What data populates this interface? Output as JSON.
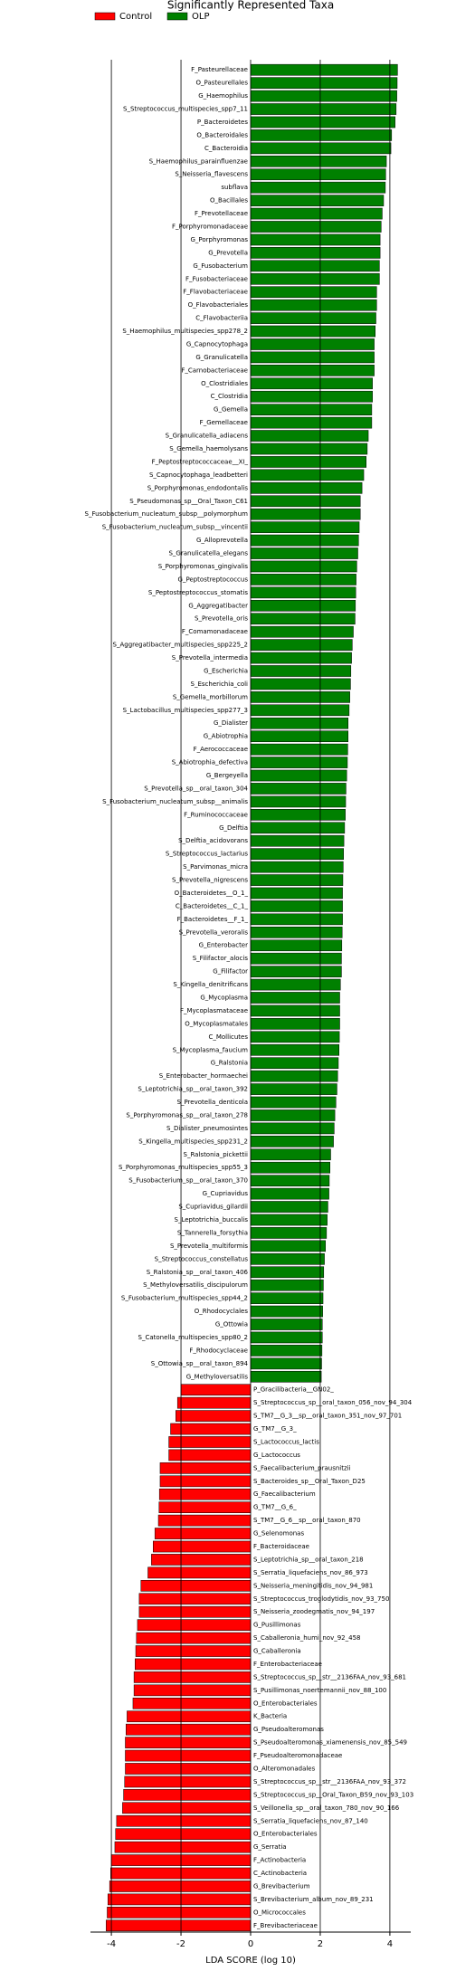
{
  "chart_data": {
    "type": "bar",
    "orientation": "horizontal",
    "title": "Significantly Represented Taxa",
    "xlabel": "LDA SCORE (log 10)",
    "xlim": [
      -4.6,
      4.6
    ],
    "xticks": [
      -4,
      -2,
      0,
      2,
      4
    ],
    "grid": true,
    "legend": "top left",
    "series": [
      {
        "name": "OLP",
        "color": "#008000",
        "categories": [
          "F_Pasteurellaceae",
          "O_Pasteurellales",
          "G_Haemophilus",
          "S_Streptococcus_multispecies_spp7_11",
          "P_Bacteroidetes",
          "O_Bacteroidales",
          "C_Bacteroidia",
          "S_Haemophilus_parainfluenzae",
          "S_Neisseria_flavescens",
          "subflava",
          "O_Bacillales",
          "F_Prevotellaceae",
          "F_Porphyromonadaceae",
          "G_Porphyromonas",
          "G_Prevotella",
          "G_Fusobacterium",
          "F_Fusobacteriaceae",
          "F_Flavobacteriaceae",
          "O_Flavobacteriales",
          "C_Flavobacteriia",
          "S_Haemophilus_multispecies_spp278_2",
          "G_Capnocytophaga",
          "G_Granulicatella",
          "F_Carnobacteriaceae",
          "O_Clostridiales",
          "C_Clostridia",
          "G_Gemella",
          "F_Gemellaceae",
          "S_Granulicatella_adiacens",
          "S_Gemella_haemolysans",
          "F_Peptostreptococcaceae__XI_",
          "S_Capnocytophaga_leadbetteri",
          "S_Porphyromonas_endodontalis",
          "S_Pseudomonas_sp__Oral_Taxon_C61",
          "S_Fusobacterium_nucleatum_subsp__polymorphum",
          "S_Fusobacterium_nucleatum_subsp__vincentii",
          "G_Alloprevotella",
          "S_Granulicatella_elegans",
          "S_Porphyromonas_gingivalis",
          "G_Peptostreptococcus",
          "S_Peptostreptococcus_stomatis",
          "G_Aggregatibacter",
          "S_Prevotella_oris",
          "F_Comamonadaceae",
          "S_Aggregatibacter_multispecies_spp225_2",
          "S_Prevotella_intermedia",
          "G_Escherichia",
          "S_Escherichia_coli",
          "S_Gemella_morbillorum",
          "S_Lactobacillus_multispecies_spp277_3",
          "G_Dialister",
          "G_Abiotrophia",
          "F_Aerococcaceae",
          "S_Abiotrophia_defectiva",
          "G_Bergeyella",
          "S_Prevotella_sp__oral_taxon_304",
          "S_Fusobacterium_nucleatum_subsp__animalis",
          "F_Ruminococcaceae",
          "G_Delftia",
          "S_Delftia_acidovorans",
          "S_Streptococcus_lactarius",
          "S_Parvimonas_micra",
          "S_Prevotella_nigrescens",
          "O_Bacteroidetes__O_1_",
          "C_Bacteroidetes__C_1_",
          "F_Bacteroidetes__F_1_",
          "S_Prevotella_veroralis",
          "G_Enterobacter",
          "S_Filifactor_alocis",
          "G_Filifactor",
          "S_Kingella_denitrificans",
          "G_Mycoplasma",
          "F_Mycoplasmataceae",
          "O_Mycoplasmatales",
          "C_Mollicutes",
          "S_Mycoplasma_faucium",
          "G_Ralstonia",
          "S_Enterobacter_hormaechei",
          "S_Leptotrichia_sp__oral_taxon_392",
          "S_Prevotella_denticola",
          "S_Porphyromonas_sp__oral_taxon_278",
          "S_Dialister_pneumosintes",
          "S_Kingella_multispecies_spp231_2",
          "S_Ralstonia_pickettii",
          "S_Porphyromonas_multispecies_spp55_3",
          "S_Fusobacterium_sp__oral_taxon_370",
          "G_Cupriavidus",
          "S_Cupriavidus_gilardii",
          "S_Leptotrichia_buccalis",
          "S_Tannerella_forsythia",
          "S_Prevotella_multiformis",
          "S_Streptococcus_constellatus",
          "S_Ralstonia_sp__oral_taxon_406",
          "S_Methyloversatilis_discipulorum",
          "S_Fusobacterium_multispecies_spp44_2",
          "O_Rhodocyclales",
          "G_Ottowia",
          "S_Catonella_multispecies_spp80_2",
          "F_Rhodocyclaceae",
          "S_Ottowia_sp__oral_taxon_894",
          "G_Methyloversatilis"
        ],
        "values": [
          4.22,
          4.21,
          4.2,
          4.18,
          4.15,
          4.05,
          4.03,
          3.9,
          3.88,
          3.87,
          3.82,
          3.78,
          3.75,
          3.72,
          3.72,
          3.7,
          3.7,
          3.62,
          3.62,
          3.6,
          3.58,
          3.55,
          3.55,
          3.55,
          3.5,
          3.5,
          3.48,
          3.48,
          3.38,
          3.35,
          3.32,
          3.25,
          3.2,
          3.15,
          3.15,
          3.12,
          3.1,
          3.08,
          3.05,
          3.03,
          3.02,
          3.01,
          3.0,
          2.95,
          2.92,
          2.9,
          2.88,
          2.87,
          2.85,
          2.83,
          2.8,
          2.8,
          2.79,
          2.78,
          2.76,
          2.74,
          2.73,
          2.72,
          2.7,
          2.68,
          2.67,
          2.66,
          2.65,
          2.64,
          2.64,
          2.64,
          2.63,
          2.62,
          2.61,
          2.61,
          2.58,
          2.56,
          2.56,
          2.56,
          2.55,
          2.54,
          2.52,
          2.5,
          2.48,
          2.45,
          2.42,
          2.4,
          2.38,
          2.3,
          2.28,
          2.26,
          2.25,
          2.22,
          2.2,
          2.18,
          2.15,
          2.12,
          2.1,
          2.09,
          2.08,
          2.07,
          2.06,
          2.06,
          2.05,
          2.04,
          2.03
        ]
      },
      {
        "name": "Control",
        "color": "#ff0000",
        "categories": [
          "P_Gracilibacteria__GN02_",
          "S_Streptococcus_sp__oral_taxon_056_nov_94_304",
          "S_TM7__G_3__sp__oral_taxon_351_nov_97_701",
          "G_TM7__G_3_",
          "S_Lactococcus_lactis",
          "G_Lactococcus",
          "S_Faecalibacterium_prausnitzii",
          "S_Bacteroides_sp__Oral_Taxon_D25",
          "G_Faecalibacterium",
          "G_TM7__G_6_",
          "S_TM7__G_6__sp__oral_taxon_870",
          "G_Selenomonas",
          "F_Bacteroidaceae",
          "S_Leptotrichia_sp__oral_taxon_218",
          "S_Serratia_liquefaciens_nov_86_973",
          "S_Neisseria_meningitidis_nov_94_981",
          "S_Streptococcus_troglodytidis_nov_93_750",
          "S_Neisseria_zoodegmatis_nov_94_197",
          "G_Pusillimonas",
          "S_Caballeronia_humi_nov_92_458",
          "G_Caballeronia",
          "F_Enterobacteriaceae",
          "S_Streptococcus_sp__str__2136FAA_nov_93_681",
          "S_Pusillimonas_noertemannii_nov_88_100",
          "O_Enterobacteriales",
          "K_Bacteria",
          "G_Pseudoalteromonas",
          "S_Pseudoalteromonas_xiamenensis_nov_85_549",
          "F_Pseudoalteromonadaceae",
          "O_Alteromonadales",
          "S_Streptococcus_sp__str__2136FAA_nov_93_372",
          "S_Streptococcus_sp__Oral_Taxon_B59_nov_93_103",
          "S_Veillonella_sp__oral_taxon_780_nov_90_166",
          "S_Serratia_liquefaciens_nov_87_140",
          "O_Enterobacteriales",
          "G_Serratia",
          "F_Actinobacteria",
          "C_Actinobacteria",
          "G_Brevibacterium",
          "S_Brevibacterium_album_nov_89_231",
          "O_Micrococcales",
          "F_Brevibacteriaceae"
        ],
        "values": [
          -2.0,
          -2.1,
          -2.15,
          -2.3,
          -2.35,
          -2.35,
          -2.6,
          -2.6,
          -2.62,
          -2.63,
          -2.65,
          -2.75,
          -2.8,
          -2.85,
          -2.95,
          -3.15,
          -3.2,
          -3.2,
          -3.25,
          -3.28,
          -3.3,
          -3.32,
          -3.35,
          -3.35,
          -3.38,
          -3.55,
          -3.58,
          -3.6,
          -3.6,
          -3.6,
          -3.62,
          -3.65,
          -3.68,
          -3.85,
          -3.88,
          -3.9,
          -4.0,
          -4.02,
          -4.05,
          -4.1,
          -4.12,
          -4.15
        ]
      }
    ]
  }
}
